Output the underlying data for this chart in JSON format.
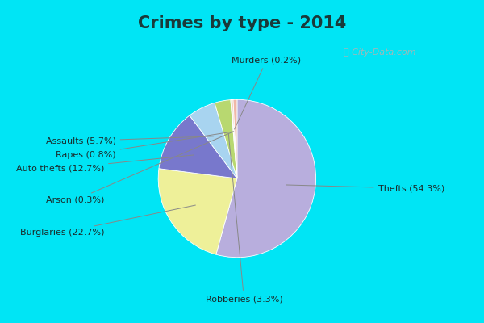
{
  "title": "Crimes by type - 2014",
  "labels": [
    "Thefts",
    "Burglaries",
    "Auto thefts",
    "Assaults",
    "Robberies",
    "Murders",
    "Arson",
    "Rapes"
  ],
  "values": [
    54.3,
    22.7,
    12.7,
    5.7,
    3.3,
    0.2,
    0.3,
    0.8
  ],
  "colors": [
    "#b8aedd",
    "#eef099",
    "#7878cc",
    "#a8d4f0",
    "#b8d870",
    "#ddddb0",
    "#f5c8b0",
    "#f0b8a8"
  ],
  "outer_bg": "#00e5f5",
  "inner_bg": "#cceedd",
  "title_color": "#1a3a3a",
  "title_fontsize": 15,
  "label_fontsize": 8,
  "watermark": "City-Data.com",
  "full_labels": {
    "Thefts": "Thefts (54.3%)",
    "Burglaries": "Burglaries (22.7%)",
    "Auto thefts": "Auto thefts (12.7%)",
    "Assaults": "Assaults (5.7%)",
    "Robberies": "Robberies (3.3%)",
    "Murders": "Murders (0.2%)",
    "Arson": "Arson (0.3%)",
    "Rapes": "Rapes (0.8%)"
  }
}
